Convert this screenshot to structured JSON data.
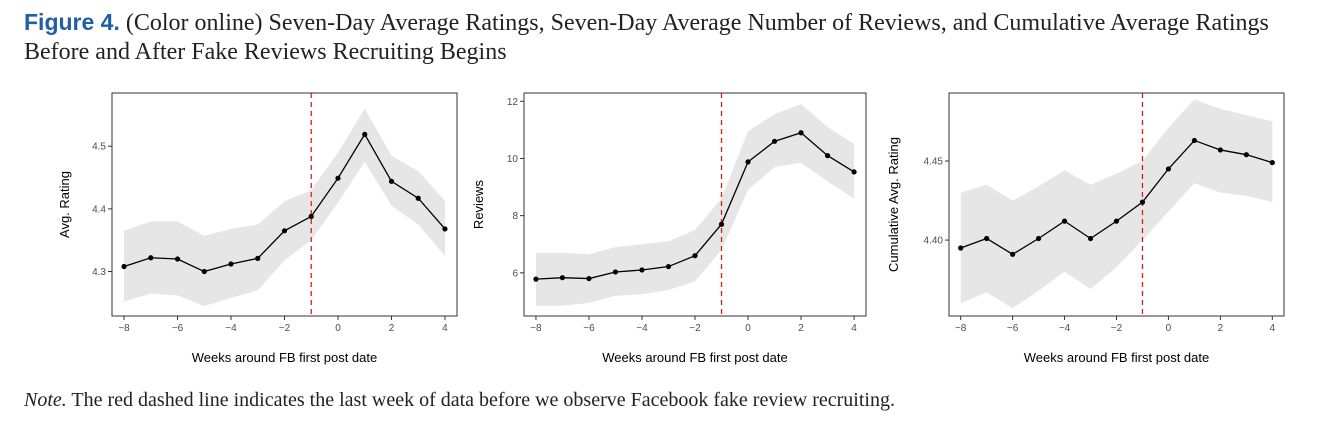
{
  "caption": {
    "label": "Figure 4.",
    "text": "(Color online) Seven-Day Average Ratings, Seven-Day Average Number of Reviews, and Cumulative Average Ratings Before and After Fake Reviews Recruiting Begins"
  },
  "note": {
    "label": "Note.",
    "text": "The red dashed line indicates the last week of data before we observe Facebook fake review recruiting."
  },
  "colors": {
    "line": "#000000",
    "band": "#e6e6e6",
    "vline": "#e31a1c"
  },
  "chart_data": [
    {
      "type": "line",
      "xlabel": "Weeks around FB first post date",
      "ylabel": "Avg. Rating",
      "x": [
        -8,
        -7,
        -6,
        -5,
        -4,
        -3,
        -2,
        -1,
        0,
        1,
        2,
        3,
        4
      ],
      "y": [
        4.308,
        4.322,
        4.32,
        4.3,
        4.312,
        4.321,
        4.365,
        4.388,
        4.449,
        4.519,
        4.444,
        4.417,
        4.368
      ],
      "lower": [
        4.252,
        4.265,
        4.262,
        4.245,
        4.258,
        4.27,
        4.318,
        4.35,
        4.41,
        4.475,
        4.405,
        4.375,
        4.325
      ],
      "upper": [
        4.365,
        4.38,
        4.38,
        4.357,
        4.368,
        4.375,
        4.412,
        4.43,
        4.49,
        4.56,
        4.485,
        4.46,
        4.413
      ],
      "xlim": [
        -8.45,
        4.45
      ],
      "ylim": [
        4.229,
        4.585
      ],
      "xticks": [
        -8,
        -6,
        -4,
        -2,
        0,
        2,
        4
      ],
      "xtick_labels": [
        "−8",
        "−6",
        "−4",
        "−2",
        "0",
        "2",
        "4"
      ],
      "yticks": [
        4.3,
        4.4,
        4.5
      ],
      "ytick_labels": [
        "4.3",
        "4.4",
        "4.5"
      ],
      "vline_x": -1,
      "grid": false
    },
    {
      "type": "line",
      "xlabel": "Weeks around FB first post date",
      "ylabel": "Reviews",
      "x": [
        -8,
        -7,
        -6,
        -5,
        -4,
        -3,
        -2,
        -1,
        0,
        1,
        2,
        3,
        4
      ],
      "y": [
        5.78,
        5.83,
        5.8,
        6.03,
        6.1,
        6.22,
        6.6,
        7.7,
        9.88,
        10.6,
        10.9,
        10.1,
        9.53
      ],
      "lower": [
        4.85,
        4.85,
        4.95,
        5.2,
        5.25,
        5.4,
        5.7,
        6.8,
        8.9,
        9.7,
        9.85,
        9.2,
        8.6
      ],
      "upper": [
        6.7,
        6.7,
        6.65,
        6.9,
        7.0,
        7.1,
        7.5,
        8.6,
        10.95,
        11.55,
        11.9,
        11.1,
        10.5
      ],
      "xlim": [
        -8.45,
        4.45
      ],
      "ylim": [
        4.49,
        12.29
      ],
      "xticks": [
        -8,
        -6,
        -4,
        -2,
        0,
        2,
        4
      ],
      "xtick_labels": [
        "−8",
        "−6",
        "−4",
        "−2",
        "0",
        "2",
        "4"
      ],
      "yticks": [
        6,
        8,
        10,
        12
      ],
      "ytick_labels": [
        "6",
        "8",
        "10",
        "12"
      ],
      "vline_x": -1,
      "grid": false
    },
    {
      "type": "line",
      "xlabel": "Weeks around FB first post date",
      "ylabel": "Cumulative Avg. Rating",
      "x": [
        -8,
        -7,
        -6,
        -5,
        -4,
        -3,
        -2,
        -1,
        0,
        1,
        2,
        3,
        4
      ],
      "y": [
        4.395,
        4.401,
        4.391,
        4.401,
        4.412,
        4.401,
        4.412,
        4.424,
        4.445,
        4.463,
        4.457,
        4.454,
        4.449
      ],
      "lower": [
        4.36,
        4.367,
        4.357,
        4.368,
        4.38,
        4.369,
        4.383,
        4.4,
        4.418,
        4.436,
        4.43,
        4.428,
        4.424
      ],
      "upper": [
        4.43,
        4.435,
        4.425,
        4.434,
        4.444,
        4.435,
        4.442,
        4.45,
        4.471,
        4.489,
        4.483,
        4.479,
        4.475
      ],
      "xlim": [
        -8.45,
        4.45
      ],
      "ylim": [
        4.352,
        4.493
      ],
      "xticks": [
        -8,
        -6,
        -4,
        -2,
        0,
        2,
        4
      ],
      "xtick_labels": [
        "−8",
        "−6",
        "−4",
        "−2",
        "0",
        "2",
        "4"
      ],
      "yticks": [
        4.4,
        4.45
      ],
      "ytick_labels": [
        "4.40",
        "4.45"
      ],
      "vline_x": -1,
      "grid": false
    }
  ]
}
